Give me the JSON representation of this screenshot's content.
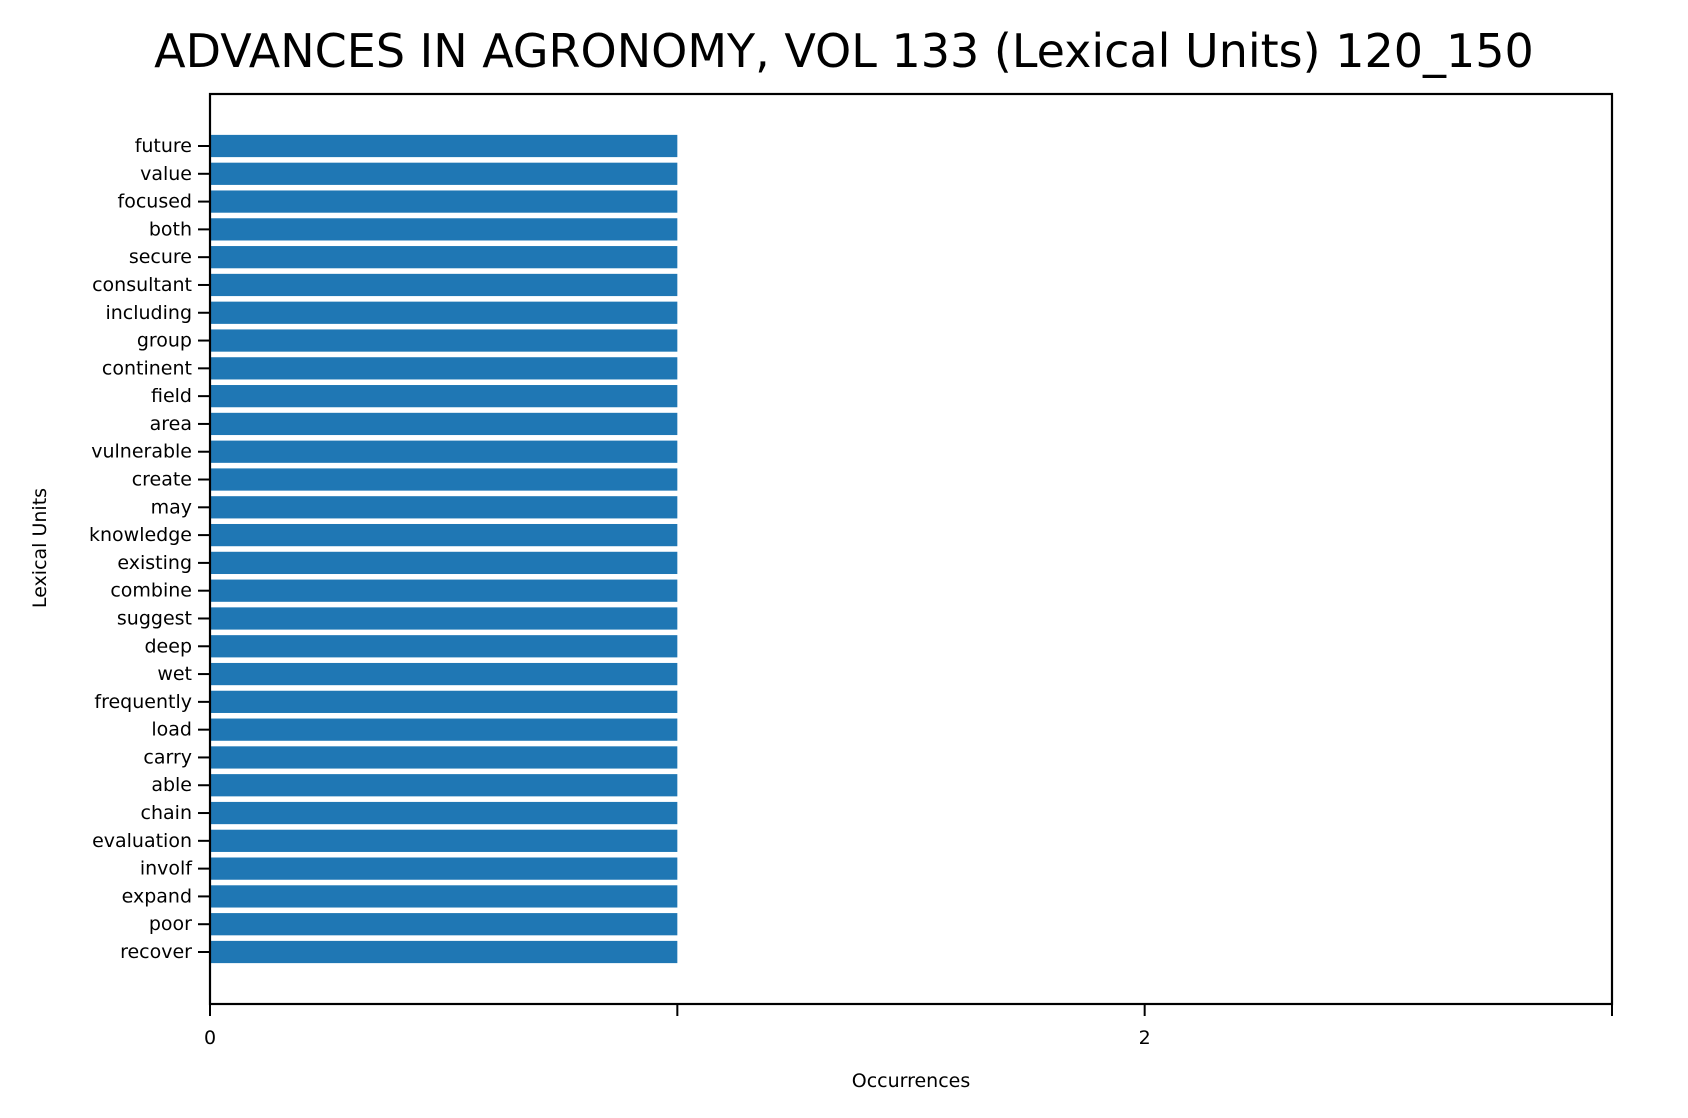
{
  "chart_data": {
    "type": "bar",
    "orientation": "horizontal",
    "title": "ADVANCES IN AGRONOMY, VOL 133 (Lexical Units) 120_150",
    "xlabel": "Occurrences",
    "ylabel": "Lexical Units",
    "categories": [
      "future",
      "value",
      "focused",
      "both",
      "secure",
      "consultant",
      "including",
      "group",
      "continent",
      "field",
      "area",
      "vulnerable",
      "create",
      "may",
      "knowledge",
      "existing",
      "combine",
      "suggest",
      "deep",
      "wet",
      "frequently",
      "load",
      "carry",
      "able",
      "chain",
      "evaluation",
      "involf",
      "expand",
      "poor",
      "recover"
    ],
    "values": [
      1,
      1,
      1,
      1,
      1,
      1,
      1,
      1,
      1,
      1,
      1,
      1,
      1,
      1,
      1,
      1,
      1,
      1,
      1,
      1,
      1,
      1,
      1,
      1,
      1,
      1,
      1,
      1,
      1,
      1
    ],
    "xlim": [
      0,
      3
    ],
    "xticks": [
      0,
      1,
      2,
      3
    ],
    "xtick_labels": [
      "0",
      "",
      "2",
      ""
    ],
    "grid": false,
    "bar_color": "#1f77b4"
  }
}
